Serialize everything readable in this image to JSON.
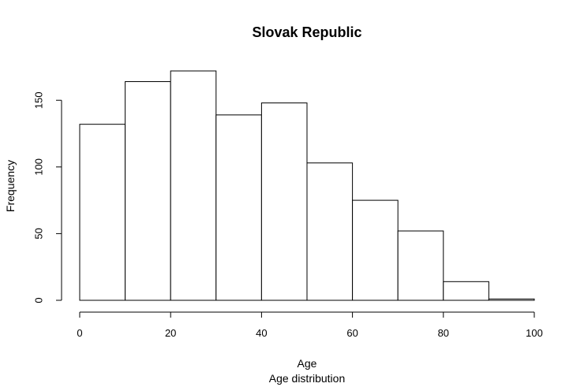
{
  "chart_data": {
    "type": "bar",
    "title": "Slovak Republic",
    "xlabel": "Age",
    "subtitle": "Age distribution",
    "ylabel": "Frequency",
    "bins": [
      {
        "x0": 0,
        "x1": 10,
        "value": 132
      },
      {
        "x0": 10,
        "x1": 20,
        "value": 164
      },
      {
        "x0": 20,
        "x1": 30,
        "value": 172
      },
      {
        "x0": 30,
        "x1": 40,
        "value": 139
      },
      {
        "x0": 40,
        "x1": 50,
        "value": 148
      },
      {
        "x0": 50,
        "x1": 60,
        "value": 103
      },
      {
        "x0": 60,
        "x1": 70,
        "value": 75
      },
      {
        "x0": 70,
        "x1": 80,
        "value": 52
      },
      {
        "x0": 80,
        "x1": 90,
        "value": 14
      },
      {
        "x0": 90,
        "x1": 100,
        "value": 1
      }
    ],
    "xticks": [
      0,
      20,
      40,
      60,
      80,
      100
    ],
    "yticks": [
      0,
      50,
      100,
      150
    ],
    "xlim": [
      0,
      100
    ],
    "ylim": [
      0,
      172
    ],
    "grid": false,
    "fill_color": "#ffffff",
    "stroke_color": "#000000"
  }
}
